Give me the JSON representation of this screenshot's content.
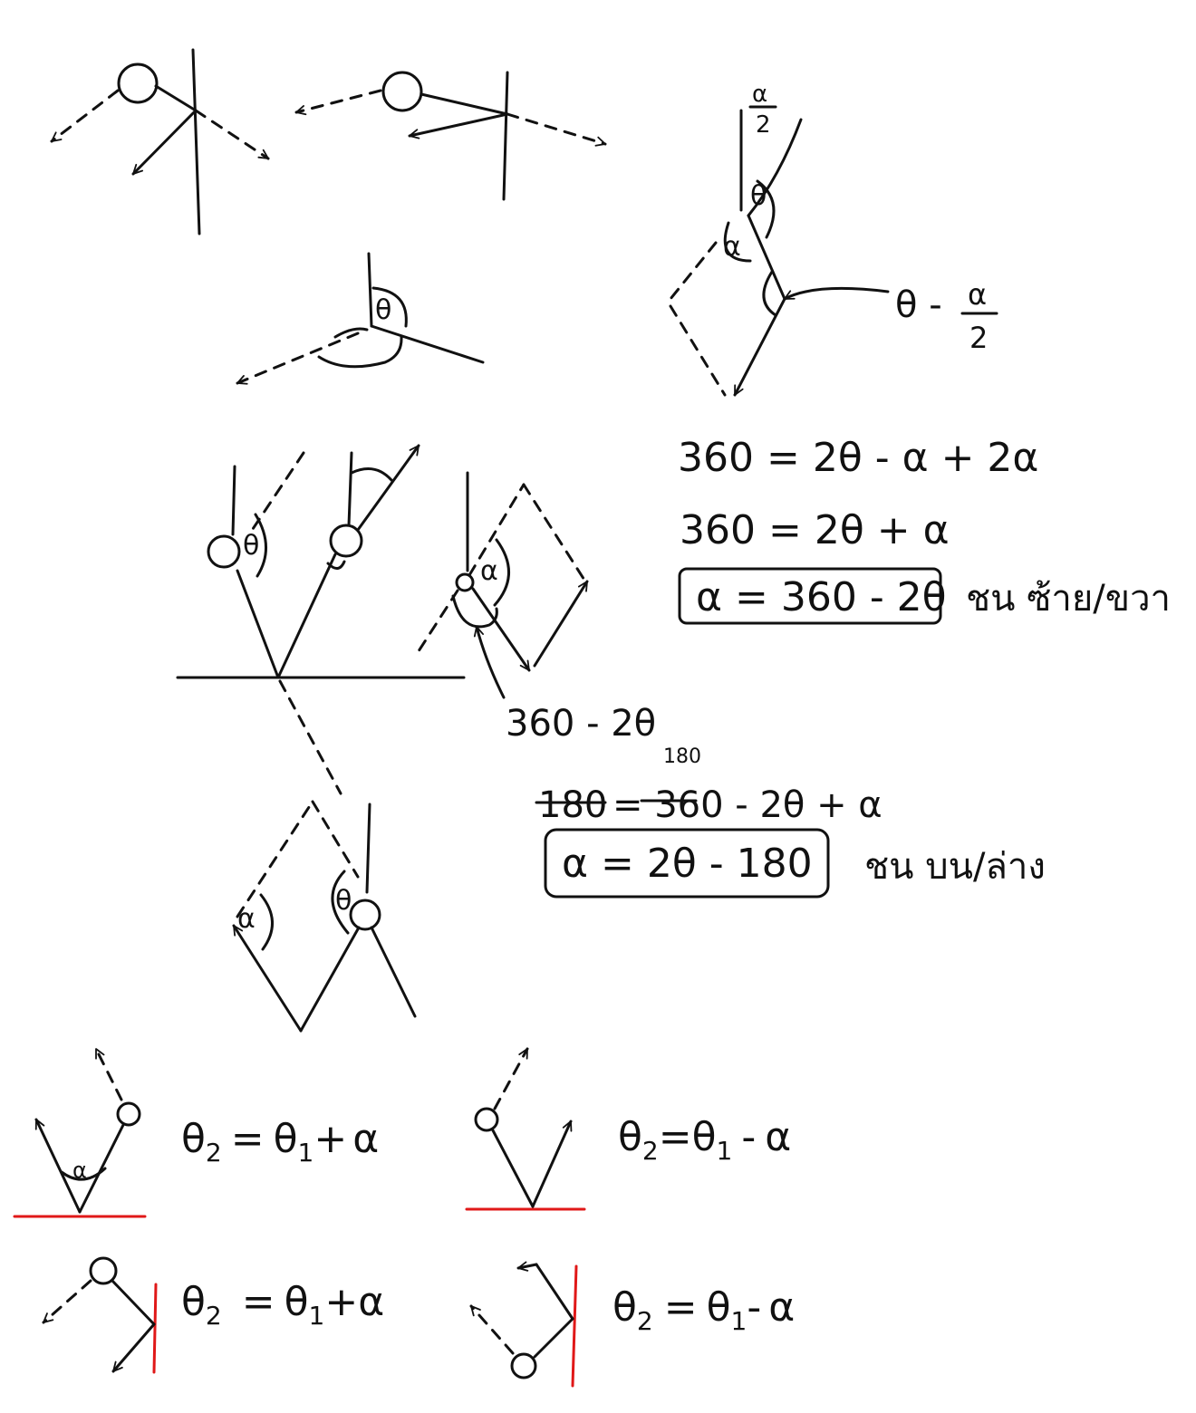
{
  "labels": {
    "theta": "θ",
    "alpha": "α",
    "alpha_over_2_num": "α",
    "alpha_over_2_den": "2",
    "theta_minus_half_alpha_left": "θ -",
    "theta_minus_half_alpha_num": "α",
    "theta_minus_half_alpha_den": "2",
    "three_sixty_minus_two_theta": "360 - 2θ",
    "small_180": "180"
  },
  "equations": {
    "eq1": "360 = 2θ - α + 2α",
    "eq2": "360 = 2θ + α",
    "boxed_sides": "α = 360 - 2θ",
    "note_sides": "ชน ซ้าย/ขวา",
    "struck_lhs": "180",
    "eq3_rest": "= 360 - 2θ + α",
    "boxed_topbottom": "α = 2θ - 180",
    "note_topbottom": "ชน บน/ล่าง"
  },
  "rules": [
    {
      "theta2": "θ",
      "sub2": "2",
      "eq": "=",
      "theta1": "θ",
      "sub1": "1",
      "op": "+",
      "alpha": "α"
    },
    {
      "theta2": "θ",
      "sub2": "2",
      "eq": "=",
      "theta1": "θ",
      "sub1": "1",
      "op": "-",
      "alpha": "α"
    },
    {
      "theta2": "θ",
      "sub2": "2",
      "eq": "=",
      "theta1": "θ",
      "sub1": "1",
      "op": "+",
      "alpha": "α"
    },
    {
      "theta2": "θ",
      "sub2": "2",
      "eq": "=",
      "theta1": "θ",
      "sub1": "1",
      "op": "-",
      "alpha": "α"
    }
  ],
  "colors": {
    "ink": "#111111",
    "wall": "#e01818",
    "background": "#ffffff"
  }
}
